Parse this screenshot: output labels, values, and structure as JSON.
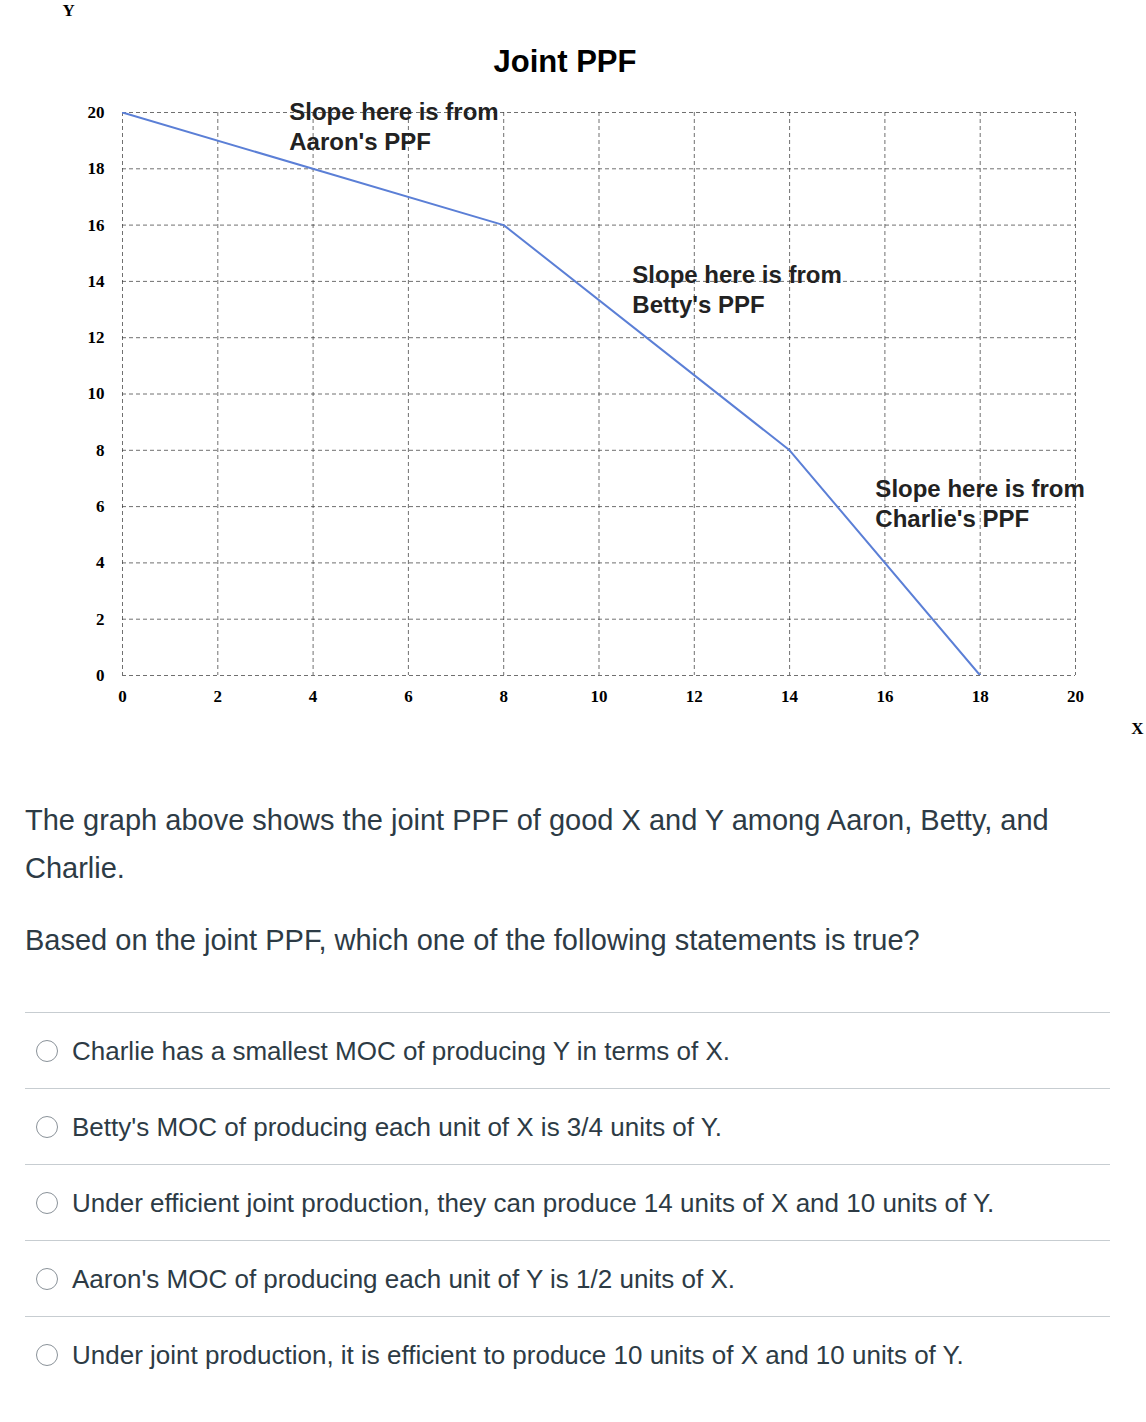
{
  "chart_data": {
    "type": "line",
    "title": "Joint PPF",
    "x_label": "X",
    "y_label": "Y",
    "x": [
      0,
      8,
      14,
      18
    ],
    "values": [
      20,
      16,
      8,
      0
    ],
    "color": "#5b7fd6",
    "xlim": [
      0,
      20
    ],
    "xticks": [
      0,
      2,
      4,
      6,
      8,
      10,
      12,
      14,
      16,
      18,
      20
    ],
    "ylim": [
      0,
      20
    ],
    "yticks": [
      0,
      2,
      4,
      6,
      8,
      10,
      12,
      14,
      16,
      18,
      20
    ],
    "grid": true,
    "annotations": [
      {
        "text": "Slope here is from\nAaron's PPF",
        "x": 3.5,
        "y": 20.5
      },
      {
        "text": "Slope here is from\nBetty's PPF",
        "x": 10.7,
        "y": 14.7
      },
      {
        "text": "Slope here is from\nCharlie's PPF",
        "x": 15.8,
        "y": 7.1
      }
    ]
  },
  "text": {
    "paragraphs": [
      "The graph above shows the joint PPF of good X and Y among Aaron, Betty, and Charlie.",
      "Based on the joint PPF, which one of the following statements is true?"
    ],
    "options": [
      "Charlie has a smallest MOC of producing Y in terms of X.",
      "Betty's MOC of producing each unit of X is 3/4 units of Y.",
      "Under efficient joint production, they can produce 14 units of X and 10 units of Y.",
      "Aaron's MOC of producing each unit of Y is 1/2 units of X.",
      "Under joint production, it is efficient to produce 10 units of X and 10 units of Y."
    ]
  }
}
